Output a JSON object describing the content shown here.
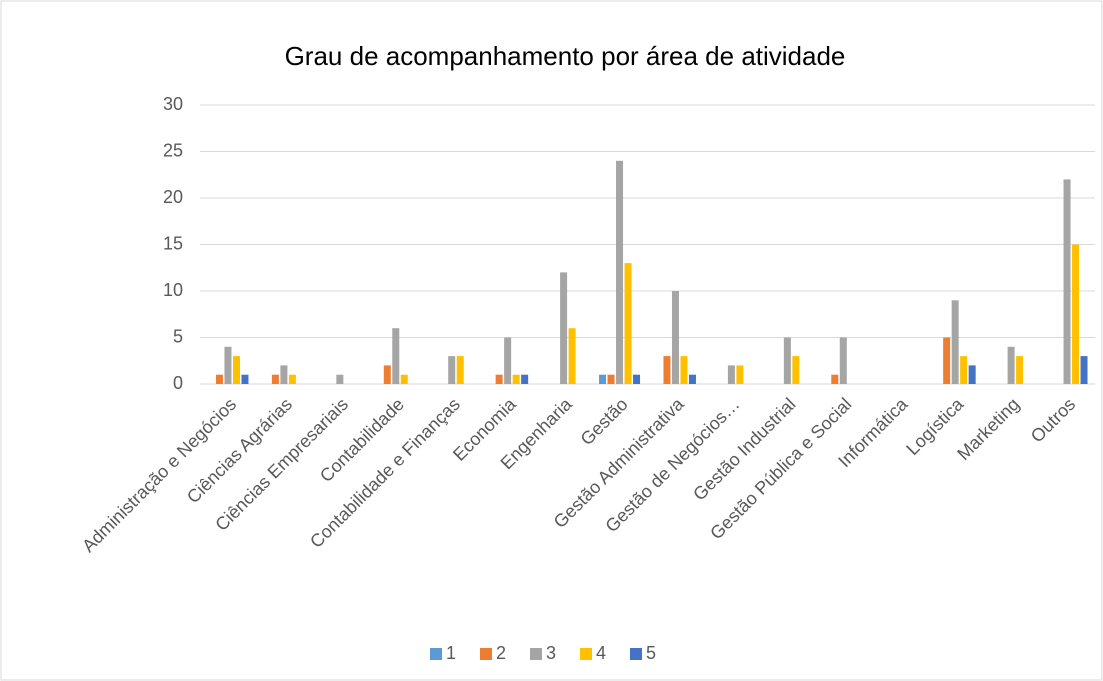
{
  "chart_data": {
    "type": "bar",
    "title": "Grau de acompanhamento por área de atividade",
    "categories": [
      "Administração e Negócios",
      "Ciências Agrárias",
      "Ciências Empresariais",
      "Contabilidade",
      "Contabilidade e Finanças",
      "Economia",
      "Engenharia",
      "Gestão",
      "Gestão Administrativa",
      "Gestão de Negócios…",
      "Gestão Industrial",
      "Gestão Pública e Social",
      "Informática",
      "Logística",
      "Marketing",
      "Outros"
    ],
    "series": [
      {
        "name": "1",
        "color": "#5b9bd5",
        "values": [
          0,
          0,
          0,
          0,
          0,
          0,
          0,
          1,
          0,
          0,
          0,
          0,
          0,
          0,
          0,
          0
        ]
      },
      {
        "name": "2",
        "color": "#ed7d31",
        "values": [
          1,
          1,
          0,
          2,
          0,
          1,
          0,
          1,
          3,
          0,
          0,
          1,
          0,
          5,
          0,
          0
        ]
      },
      {
        "name": "3",
        "color": "#a5a5a5",
        "values": [
          4,
          2,
          1,
          6,
          3,
          5,
          12,
          24,
          10,
          2,
          5,
          5,
          0,
          9,
          4,
          22
        ]
      },
      {
        "name": "4",
        "color": "#ffc000",
        "values": [
          3,
          1,
          0,
          1,
          3,
          1,
          6,
          13,
          3,
          2,
          3,
          0,
          0,
          3,
          3,
          15
        ]
      },
      {
        "name": "5",
        "color": "#4472c4",
        "values": [
          1,
          0,
          0,
          0,
          0,
          1,
          0,
          1,
          1,
          0,
          0,
          0,
          0,
          2,
          0,
          3
        ]
      }
    ],
    "ylim": [
      0,
      30
    ],
    "yticks": [
      0,
      5,
      10,
      15,
      20,
      25,
      30
    ],
    "grid": true,
    "legend": "bottom"
  }
}
